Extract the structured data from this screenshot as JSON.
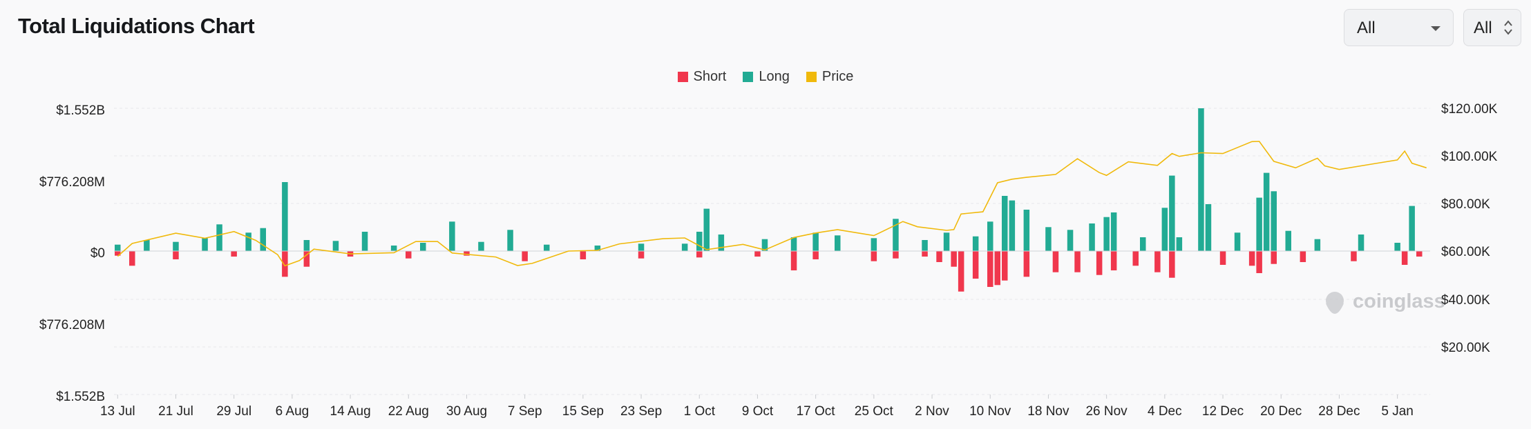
{
  "header": {
    "title": "Total Liquidations Chart",
    "filter_main": "All",
    "filter_side": "All"
  },
  "legend": [
    {
      "label": "Short",
      "color": "#f0374d"
    },
    {
      "label": "Long",
      "color": "#22ab94"
    },
    {
      "label": "Price",
      "color": "#f0b90b"
    }
  ],
  "watermark": "coinglass",
  "chart_data": {
    "type": "bar",
    "title": "Total Liquidations Chart",
    "left_axis_ticks": [
      "$1.552B",
      "$776.208M",
      "$0",
      "$776.208M",
      "$1.552B"
    ],
    "right_axis_ticks": [
      "$120.00K",
      "$100.00K",
      "$80.00K",
      "$60.00K",
      "$40.00K",
      "$20.00K"
    ],
    "x_tick_labels": [
      "13 Jul",
      "21 Jul",
      "29 Jul",
      "6 Aug",
      "14 Aug",
      "22 Aug",
      "30 Aug",
      "7 Sep",
      "15 Sep",
      "23 Sep",
      "1 Oct",
      "9 Oct",
      "17 Oct",
      "25 Oct",
      "2 Nov",
      "10 Nov",
      "18 Nov",
      "26 Nov",
      "4 Dec",
      "12 Dec",
      "20 Dec",
      "28 Dec",
      "5 Jan"
    ],
    "ylim_liquidations_usd": [
      -1552000000,
      1552000000
    ],
    "ylim_price_usd": [
      0,
      120000
    ],
    "grid": true,
    "legend_position": "top-center",
    "series": [
      {
        "name": "Long",
        "color": "#22ab94",
        "points": [
          [
            "13 Jul",
            70000000
          ],
          [
            "17 Jul",
            120000000
          ],
          [
            "21 Jul",
            100000000
          ],
          [
            "25 Jul",
            140000000
          ],
          [
            "27 Jul",
            290000000
          ],
          [
            "31 Jul",
            200000000
          ],
          [
            "2 Aug",
            250000000
          ],
          [
            "5 Aug",
            750000000
          ],
          [
            "8 Aug",
            120000000
          ],
          [
            "12 Aug",
            110000000
          ],
          [
            "16 Aug",
            210000000
          ],
          [
            "20 Aug",
            60000000
          ],
          [
            "24 Aug",
            90000000
          ],
          [
            "28 Aug",
            320000000
          ],
          [
            "1 Sep",
            100000000
          ],
          [
            "5 Sep",
            230000000
          ],
          [
            "10 Sep",
            70000000
          ],
          [
            "17 Sep",
            60000000
          ],
          [
            "23 Sep",
            80000000
          ],
          [
            "29 Sep",
            80000000
          ],
          [
            "1 Oct",
            210000000
          ],
          [
            "2 Oct",
            460000000
          ],
          [
            "4 Oct",
            180000000
          ],
          [
            "10 Oct",
            130000000
          ],
          [
            "14 Oct",
            150000000
          ],
          [
            "17 Oct",
            200000000
          ],
          [
            "20 Oct",
            170000000
          ],
          [
            "25 Oct",
            140000000
          ],
          [
            "28 Oct",
            350000000
          ],
          [
            "1 Nov",
            120000000
          ],
          [
            "4 Nov",
            200000000
          ],
          [
            "8 Nov",
            160000000
          ],
          [
            "10 Nov",
            320000000
          ],
          [
            "12 Nov",
            600000000
          ],
          [
            "13 Nov",
            550000000
          ],
          [
            "15 Nov",
            450000000
          ],
          [
            "18 Nov",
            260000000
          ],
          [
            "21 Nov",
            230000000
          ],
          [
            "24 Nov",
            300000000
          ],
          [
            "26 Nov",
            370000000
          ],
          [
            "27 Nov",
            420000000
          ],
          [
            "1 Dec",
            150000000
          ],
          [
            "4 Dec",
            470000000
          ],
          [
            "5 Dec",
            820000000
          ],
          [
            "6 Dec",
            150000000
          ],
          [
            "9 Dec",
            1552000000
          ],
          [
            "10 Dec",
            510000000
          ],
          [
            "14 Dec",
            200000000
          ],
          [
            "17 Dec",
            580000000
          ],
          [
            "18 Dec",
            850000000
          ],
          [
            "19 Dec",
            650000000
          ],
          [
            "21 Dec",
            220000000
          ],
          [
            "25 Dec",
            130000000
          ],
          [
            "31 Dec",
            180000000
          ],
          [
            "5 Jan",
            90000000
          ],
          [
            "7 Jan",
            490000000
          ]
        ]
      },
      {
        "name": "Short",
        "color": "#f0374d",
        "points": [
          [
            "13 Jul",
            -50000000
          ],
          [
            "15 Jul",
            -160000000
          ],
          [
            "21 Jul",
            -90000000
          ],
          [
            "29 Jul",
            -60000000
          ],
          [
            "5 Aug",
            -280000000
          ],
          [
            "8 Aug",
            -170000000
          ],
          [
            "14 Aug",
            -60000000
          ],
          [
            "22 Aug",
            -80000000
          ],
          [
            "30 Aug",
            -50000000
          ],
          [
            "7 Sep",
            -110000000
          ],
          [
            "15 Sep",
            -90000000
          ],
          [
            "23 Sep",
            -80000000
          ],
          [
            "1 Oct",
            -70000000
          ],
          [
            "9 Oct",
            -60000000
          ],
          [
            "14 Oct",
            -210000000
          ],
          [
            "17 Oct",
            -90000000
          ],
          [
            "25 Oct",
            -110000000
          ],
          [
            "28 Oct",
            -80000000
          ],
          [
            "1 Nov",
            -60000000
          ],
          [
            "3 Nov",
            -120000000
          ],
          [
            "5 Nov",
            -170000000
          ],
          [
            "6 Nov",
            -440000000
          ],
          [
            "8 Nov",
            -300000000
          ],
          [
            "10 Nov",
            -390000000
          ],
          [
            "11 Nov",
            -370000000
          ],
          [
            "12 Nov",
            -320000000
          ],
          [
            "15 Nov",
            -280000000
          ],
          [
            "19 Nov",
            -230000000
          ],
          [
            "22 Nov",
            -230000000
          ],
          [
            "25 Nov",
            -260000000
          ],
          [
            "27 Nov",
            -210000000
          ],
          [
            "30 Nov",
            -160000000
          ],
          [
            "3 Dec",
            -230000000
          ],
          [
            "5 Dec",
            -290000000
          ],
          [
            "12 Dec",
            -150000000
          ],
          [
            "16 Dec",
            -160000000
          ],
          [
            "17 Dec",
            -240000000
          ],
          [
            "19 Dec",
            -140000000
          ],
          [
            "23 Dec",
            -120000000
          ],
          [
            "30 Dec",
            -110000000
          ],
          [
            "6 Jan",
            -150000000
          ],
          [
            "8 Jan",
            -60000000
          ]
        ]
      },
      {
        "name": "Price",
        "color": "#f0b90b",
        "points": [
          [
            "13 Jul",
            57800
          ],
          [
            "15 Jul",
            63200
          ],
          [
            "21 Jul",
            67500
          ],
          [
            "25 Jul",
            65400
          ],
          [
            "29 Jul",
            68200
          ],
          [
            "1 Aug",
            64500
          ],
          [
            "4 Aug",
            58500
          ],
          [
            "5 Aug",
            53800
          ],
          [
            "7 Aug",
            56000
          ],
          [
            "9 Aug",
            60800
          ],
          [
            "14 Aug",
            58800
          ],
          [
            "20 Aug",
            59300
          ],
          [
            "23 Aug",
            64000
          ],
          [
            "26 Aug",
            64000
          ],
          [
            "28 Aug",
            59200
          ],
          [
            "3 Sep",
            57500
          ],
          [
            "6 Sep",
            53900
          ],
          [
            "8 Sep",
            54800
          ],
          [
            "13 Sep",
            60000
          ],
          [
            "17 Sep",
            60300
          ],
          [
            "20 Sep",
            63000
          ],
          [
            "26 Sep",
            65200
          ],
          [
            "29 Sep",
            65500
          ],
          [
            "2 Oct",
            60600
          ],
          [
            "7 Oct",
            62800
          ],
          [
            "10 Oct",
            60500
          ],
          [
            "14 Oct",
            65700
          ],
          [
            "17 Oct",
            67600
          ],
          [
            "20 Oct",
            69000
          ],
          [
            "25 Oct",
            66500
          ],
          [
            "29 Oct",
            72400
          ],
          [
            "31 Oct",
            70200
          ],
          [
            "4 Nov",
            68700
          ],
          [
            "5 Nov",
            69000
          ],
          [
            "6 Nov",
            75600
          ],
          [
            "9 Nov",
            76500
          ],
          [
            "11 Nov",
            88700
          ],
          [
            "13 Nov",
            90200
          ],
          [
            "15 Nov",
            91000
          ],
          [
            "19 Nov",
            92200
          ],
          [
            "22 Nov",
            98800
          ],
          [
            "25 Nov",
            93000
          ],
          [
            "26 Nov",
            91800
          ],
          [
            "29 Nov",
            97500
          ],
          [
            "3 Dec",
            96000
          ],
          [
            "5 Dec",
            101000
          ],
          [
            "6 Dec",
            99800
          ],
          [
            "9 Dec",
            101300
          ],
          [
            "12 Dec",
            101000
          ],
          [
            "16 Dec",
            106000
          ],
          [
            "17 Dec",
            106100
          ],
          [
            "19 Dec",
            97700
          ],
          [
            "22 Dec",
            95000
          ],
          [
            "25 Dec",
            99000
          ],
          [
            "26 Dec",
            95800
          ],
          [
            "28 Dec",
            94300
          ],
          [
            "2 Jan",
            96800
          ],
          [
            "5 Jan",
            98300
          ],
          [
            "6 Jan",
            102000
          ],
          [
            "7 Jan",
            96900
          ],
          [
            "9 Jan",
            95000
          ]
        ]
      }
    ]
  }
}
